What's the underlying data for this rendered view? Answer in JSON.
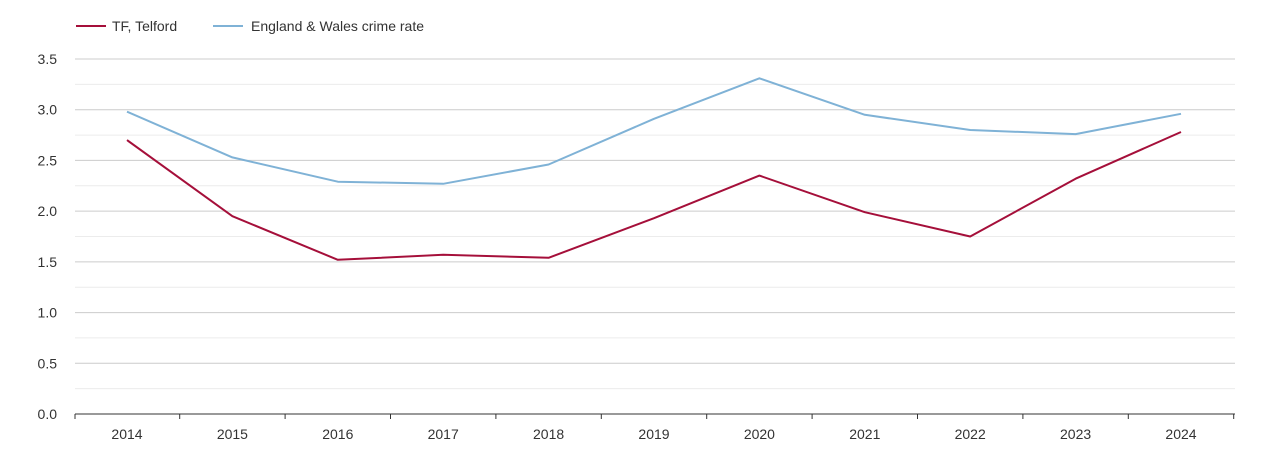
{
  "chart_data": {
    "type": "line",
    "title": "",
    "xlabel": "",
    "ylabel": "",
    "categories": [
      "2014",
      "2015",
      "2016",
      "2017",
      "2018",
      "2019",
      "2020",
      "2021",
      "2022",
      "2023",
      "2024"
    ],
    "ylim": [
      0,
      3.5
    ],
    "y_ticks": [
      "0.0",
      "0.5",
      "1.0",
      "1.5",
      "2.0",
      "2.5",
      "3.0",
      "3.5"
    ],
    "grid": true,
    "legend_position": "top-left",
    "series": [
      {
        "name": "TF, Telford",
        "color": "#a50f3a",
        "values": [
          2.7,
          1.95,
          1.52,
          1.57,
          1.54,
          1.93,
          2.35,
          1.99,
          1.75,
          2.32,
          2.78
        ]
      },
      {
        "name": "England & Wales crime rate",
        "color": "#7fb2d6",
        "values": [
          2.98,
          2.53,
          2.29,
          2.27,
          2.46,
          2.91,
          3.31,
          2.95,
          2.8,
          2.76,
          2.96
        ]
      }
    ]
  }
}
